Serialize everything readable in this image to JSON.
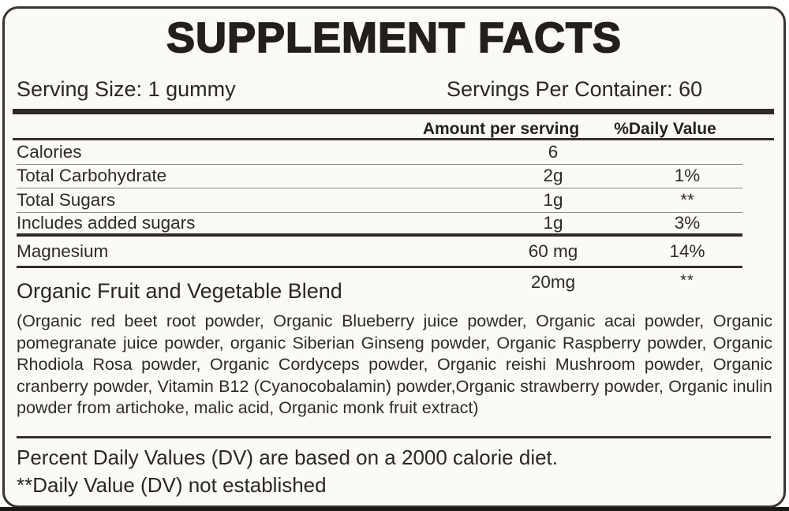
{
  "title": "SUPPLEMENT FACTS",
  "serving": {
    "size": "Serving Size: 1 gummy",
    "per_container": "Servings Per Container: 60"
  },
  "table": {
    "headers": {
      "amount": "Amount per serving",
      "daily_value": "%Daily Value"
    },
    "rows": [
      {
        "label": "Calories",
        "amount": "6",
        "dv": ""
      },
      {
        "label": "Total Carbohydrate",
        "amount": "2g",
        "dv": "1%"
      },
      {
        "label": "Total Sugars",
        "amount": "1g",
        "dv": "**"
      },
      {
        "label": "Includes added sugars",
        "amount": "1g",
        "dv": "3%"
      },
      {
        "label": "Magnesium",
        "amount": "60 mg",
        "dv": "14%"
      }
    ],
    "blend": {
      "label": "Organic Fruit and Vegetable Blend",
      "amount": "20mg",
      "dv": "**"
    }
  },
  "ingredients": "(Organic red beet root powder, Organic Blueberry juice powder, Organic acai powder, Organic pomegranate juice powder, organic Siberian Ginseng powder, Organic Raspberry powder, Organic Rhodiola Rosa powder, Organic Cordyceps powder, Organic reishi Mushroom powder, Organic cranberry powder, Vitamin B12 (Cyanocobalamin) powder,Organic strawberry powder, Organic inulin powder from artichoke, malic acid, Organic monk fruit extract)",
  "footnotes": {
    "line1": "Percent Daily Values (DV) are based on a 2000 calorie diet.",
    "line2": "**Daily Value (DV) not established"
  },
  "colors": {
    "background": "#fbfaf7",
    "text": "#2e2b28",
    "line_dark": "#34302b",
    "line_light": "#8d8a86",
    "border": "#39342f"
  }
}
